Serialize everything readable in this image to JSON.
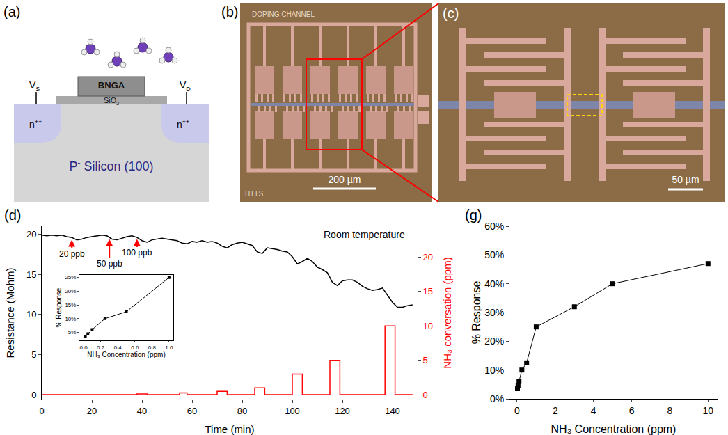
{
  "panels": {
    "a": {
      "label": "(a)",
      "terminals": [
        {
          "base": "V",
          "sub": "S"
        },
        {
          "base": "V",
          "sub": "D"
        }
      ],
      "film": "BNGA",
      "oxide": {
        "base": "SiO",
        "sub": "2"
      },
      "contacts": {
        "base": "n",
        "sup": "++"
      },
      "substrate": {
        "base": "P",
        "sup": "-",
        "rest": " Silicon (100)"
      }
    },
    "b": {
      "label": "(b)",
      "texts": [
        "DOPING CHANNEL",
        "HTTS"
      ],
      "scale_bar": "200 µm"
    },
    "c": {
      "label": "(c)",
      "scale_bar": "50 µm"
    },
    "d": {
      "label": "(d)"
    },
    "g": {
      "label": "(g)"
    }
  },
  "chart_data": [
    {
      "type": "line",
      "x_label": "Time (min)",
      "y_label": "Resistance (Mohm)",
      "y2_label": "NH₃ conversation (ppm)",
      "xlim": [
        0,
        150
      ],
      "xticks": [
        0,
        20,
        40,
        60,
        80,
        100,
        120,
        140
      ],
      "ylim": [
        -0.6,
        21
      ],
      "yticks": [
        0,
        5,
        10,
        15,
        20
      ],
      "y2lim": [
        -0.7,
        24.5
      ],
      "y2ticks": [
        0,
        5,
        10,
        15,
        20
      ],
      "grid": false,
      "series": [
        {
          "color": "#000000",
          "x": [
            0,
            2,
            4,
            6,
            8,
            10,
            12,
            14,
            16,
            18,
            20,
            22,
            24,
            26,
            28,
            30,
            32,
            34,
            36,
            38,
            40,
            42,
            44,
            46,
            48,
            50,
            52,
            54,
            56,
            58,
            60,
            62,
            64,
            66,
            68,
            70,
            72,
            74,
            76,
            78,
            80,
            82,
            84,
            86,
            88,
            90,
            92,
            94,
            96,
            98,
            100,
            102,
            104,
            106,
            108,
            110,
            112,
            114,
            116,
            118,
            120,
            122,
            124,
            126,
            128,
            130,
            132,
            134,
            136,
            138,
            140,
            142,
            144,
            146,
            148
          ],
          "values": [
            19.9,
            19.8,
            19.9,
            19.8,
            19.9,
            19.7,
            19.6,
            19.3,
            19.4,
            19.6,
            19.7,
            19.8,
            19.9,
            19.8,
            19.4,
            19.3,
            19.5,
            19.7,
            19.8,
            19.6,
            19.2,
            19.0,
            19.3,
            19.4,
            19.5,
            19.4,
            19.3,
            19.2,
            18.9,
            18.8,
            19.1,
            19.0,
            19.2,
            19.0,
            19.1,
            18.9,
            18.5,
            18.3,
            18.7,
            18.9,
            19.0,
            18.8,
            18.6,
            17.8,
            17.6,
            18.3,
            18.2,
            18.1,
            17.9,
            17.8,
            17.2,
            16.3,
            16.6,
            17.0,
            16.6,
            15.9,
            15.6,
            15.2,
            14.0,
            13.6,
            14.2,
            14.3,
            14.3,
            14.0,
            13.5,
            13.2,
            13.0,
            13.1,
            13.3,
            12.4,
            11.5,
            10.9,
            10.9,
            11.1,
            11.2
          ]
        },
        {
          "color": "#ff0000",
          "axis": "y2",
          "x": [
            0,
            12,
            12,
            15,
            15,
            27,
            27,
            30,
            30,
            38,
            38,
            42,
            42,
            55,
            55,
            58,
            58,
            70,
            70,
            74,
            74,
            85,
            85,
            89,
            89,
            100,
            100,
            104,
            104,
            115,
            115,
            119,
            119,
            137,
            137,
            141,
            141,
            148
          ],
          "values": [
            0,
            0,
            0.02,
            0.02,
            0,
            0,
            0.05,
            0.05,
            0,
            0,
            0.1,
            0.1,
            0,
            0,
            0.25,
            0.25,
            0,
            0,
            0.5,
            0.5,
            0,
            0,
            1,
            1,
            0,
            0,
            3,
            3,
            0,
            0,
            5,
            5,
            0,
            0,
            10,
            10,
            0,
            0
          ]
        }
      ],
      "annotations": [
        {
          "text": "Room temperature"
        },
        {
          "text": "20 ppb",
          "x": 12,
          "y": 19.3
        },
        {
          "text": "50 ppb",
          "x": 27,
          "y": 19.4
        },
        {
          "text": "100 ppb",
          "x": 38,
          "y": 19.4
        }
      ]
    },
    {
      "type": "line",
      "marker": "square",
      "x_label": "NH₃ Concentration (ppm)",
      "y_label": "% Response",
      "x": [
        0.02,
        0.05,
        0.1,
        0.25,
        0.5,
        1
      ],
      "values": [
        3.5,
        4.5,
        6,
        10,
        12.5,
        25
      ],
      "color": "#000000",
      "xlim": [
        -0.05,
        1.05
      ],
      "xticks": [
        {
          "value": 0,
          "label": "0.0"
        },
        0.2,
        0.4,
        0.6,
        0.8,
        {
          "value": 1,
          "label": "1.0"
        }
      ],
      "ylim": [
        2,
        26
      ],
      "yticks": [
        {
          "value": 5,
          "label": "5%"
        },
        {
          "value": 10,
          "label": "10%"
        },
        {
          "value": 15,
          "label": "15%"
        },
        {
          "value": 20,
          "label": "20%"
        },
        {
          "value": 25,
          "label": "25%"
        }
      ],
      "grid": false
    },
    {
      "type": "line",
      "marker": "square",
      "x_label": "NH₃ Concentration (ppm)",
      "y_label": "% Response",
      "x": [
        0.02,
        0.05,
        0.1,
        0.25,
        0.5,
        1,
        3,
        5,
        10
      ],
      "values": [
        3.5,
        4.5,
        6,
        10,
        12.5,
        25,
        32,
        40,
        47
      ],
      "color": "#000000",
      "xlim": [
        -0.4,
        10.5
      ],
      "xticks": [
        0,
        2,
        4,
        6,
        8,
        10
      ],
      "ylim": [
        0,
        60
      ],
      "yticks": [
        {
          "value": 0,
          "label": "0%"
        },
        {
          "value": 10,
          "label": "10%"
        },
        {
          "value": 20,
          "label": "20%"
        },
        {
          "value": 30,
          "label": "30%"
        },
        {
          "value": 40,
          "label": "40%"
        },
        {
          "value": 50,
          "label": "50%"
        },
        {
          "value": 60,
          "label": "60%"
        }
      ],
      "grid": false
    }
  ]
}
